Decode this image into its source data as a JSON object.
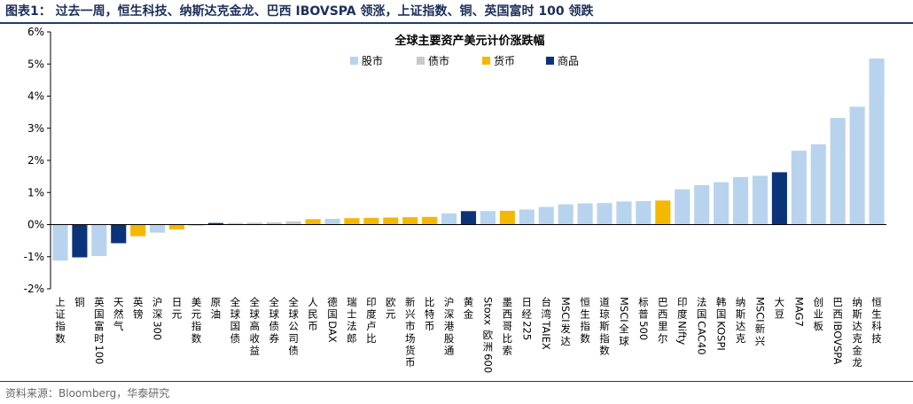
{
  "figure": {
    "header": "图表1：  过去一周，恒生科技、纳斯达克金龙、巴西 IBOVSPA 领涨，上证指数、铜、英国富时 100 领跌",
    "source": "资料来源：Bloomberg，华泰研究"
  },
  "colors": {
    "股市": "#b8d3ee",
    "债市": "#c8c8c8",
    "货币": "#f5b800",
    "商品": "#0b3379",
    "axis": "#000000",
    "rule": "#1f3c74"
  },
  "chart_data": {
    "type": "bar",
    "title": "全球主要资产美元计价涨跌幅",
    "ylim": [
      -2,
      6
    ],
    "yticks": [
      "-2%",
      "-1%",
      "0%",
      "1%",
      "2%",
      "3%",
      "4%",
      "5%",
      "6%"
    ],
    "ytick_values": [
      -2,
      -1,
      0,
      1,
      2,
      3,
      4,
      5,
      6
    ],
    "grid": false,
    "legend": {
      "position": "top-center",
      "entries": [
        "股市",
        "债市",
        "货币",
        "商品"
      ]
    },
    "xlabel": "",
    "ylabel": "",
    "categories": [
      "上证指数",
      "铜",
      "英国富时100",
      "天然气",
      "英镑",
      "沪深300",
      "日元",
      "美元指数",
      "原油",
      "全球国债",
      "全球高收益",
      "全球债券",
      "全球公司债",
      "人民币",
      "德国DAX",
      "瑞士法郎",
      "印度卢比",
      "欧元",
      "新兴市场货币",
      "比特币",
      "沪深港股通",
      "黄金",
      "Stoxx欧洲600",
      "墨西哥比索",
      "日经225",
      "台湾TAIEX",
      "MSCI发达",
      "恒生指数",
      "道琼斯指数",
      "MSCI全球",
      "标普500",
      "巴西里尔",
      "印度Nifty",
      "法国CAC40",
      "韩国KOSPI",
      "纳斯达克",
      "MSCI新兴",
      "大豆",
      "MAG7",
      "创业板",
      "巴西IBOVSPA",
      "纳斯达克金龙",
      "恒生科技"
    ],
    "values": [
      -1.12,
      -1.02,
      -0.98,
      -0.58,
      -0.36,
      -0.25,
      -0.15,
      -0.03,
      0.05,
      0.05,
      0.06,
      0.07,
      0.1,
      0.17,
      0.18,
      0.2,
      0.21,
      0.22,
      0.23,
      0.24,
      0.35,
      0.42,
      0.42,
      0.43,
      0.47,
      0.55,
      0.63,
      0.66,
      0.67,
      0.72,
      0.73,
      0.75,
      1.1,
      1.23,
      1.32,
      1.48,
      1.52,
      1.63,
      2.3,
      2.5,
      3.32,
      3.67,
      5.17
    ],
    "asset_class": [
      "股市",
      "商品",
      "股市",
      "商品",
      "货币",
      "股市",
      "货币",
      "货币",
      "商品",
      "债市",
      "债市",
      "债市",
      "债市",
      "货币",
      "股市",
      "货币",
      "货币",
      "货币",
      "货币",
      "货币",
      "股市",
      "商品",
      "股市",
      "货币",
      "股市",
      "股市",
      "股市",
      "股市",
      "股市",
      "股市",
      "股市",
      "货币",
      "股市",
      "股市",
      "股市",
      "股市",
      "股市",
      "商品",
      "股市",
      "股市",
      "股市",
      "股市",
      "股市"
    ]
  }
}
